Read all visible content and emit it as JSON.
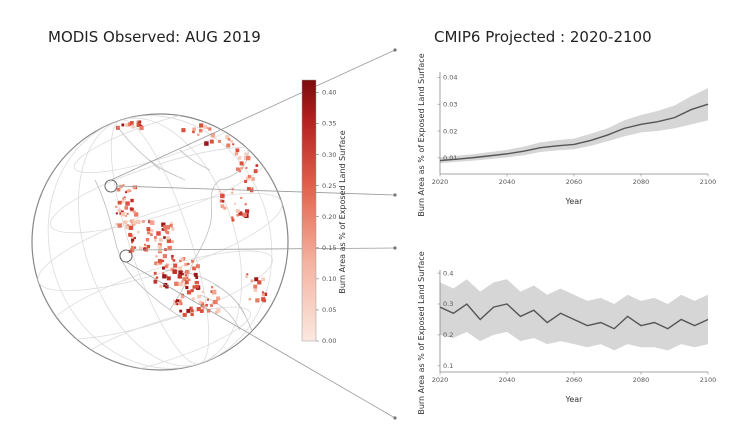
{
  "titles": {
    "map": "MODIS Observed: AUG 2019",
    "projection": "CMIP6 Projected : 2020-2100"
  },
  "colorbar": {
    "label": "Burn Area as % of Exposed Land Surface",
    "ticks": [
      "0.00",
      "0.05",
      "0.10",
      "0.15",
      "0.20",
      "0.25",
      "0.30",
      "0.35",
      "0.40"
    ],
    "min": 0,
    "max": 0.42,
    "color_low": "#fbe8e0",
    "color_high": "#7a0c0c"
  },
  "chart_data": [
    {
      "type": "line",
      "xlabel": "Year",
      "ylabel": "Burn Area as % of Exposed Land Surface",
      "xlim": [
        2020,
        2100
      ],
      "ylim": [
        0.004,
        0.042
      ],
      "x_ticks": [
        2020,
        2040,
        2060,
        2080,
        2100
      ],
      "y_ticks": [
        0.01,
        0.02,
        0.03,
        0.04
      ],
      "y_tick_labels": [
        "0.01",
        "0.02",
        "0.03",
        "0.04"
      ],
      "x": [
        2020,
        2025,
        2030,
        2035,
        2040,
        2045,
        2050,
        2055,
        2060,
        2065,
        2070,
        2075,
        2080,
        2085,
        2090,
        2095,
        2100
      ],
      "mean": [
        0.009,
        0.0095,
        0.0101,
        0.0108,
        0.0115,
        0.0125,
        0.0138,
        0.0145,
        0.015,
        0.0165,
        0.0185,
        0.021,
        0.0225,
        0.0235,
        0.025,
        0.028,
        0.03
      ],
      "lower": [
        0.008,
        0.0085,
        0.009,
        0.0096,
        0.0102,
        0.011,
        0.0122,
        0.0128,
        0.0132,
        0.0145,
        0.0162,
        0.018,
        0.0195,
        0.02,
        0.021,
        0.0225,
        0.024
      ],
      "upper": [
        0.0102,
        0.0108,
        0.0114,
        0.0122,
        0.013,
        0.0142,
        0.0158,
        0.0166,
        0.0172,
        0.019,
        0.021,
        0.024,
        0.026,
        0.0275,
        0.0295,
        0.033,
        0.036
      ],
      "line_color": "#555555",
      "band_color": "#d6d6d6"
    },
    {
      "type": "line",
      "xlabel": "Year",
      "ylabel": "Burn Area as % of Exposed Land Surface",
      "xlim": [
        2020,
        2100
      ],
      "ylim": [
        0.08,
        0.41
      ],
      "x_ticks": [
        2020,
        2040,
        2060,
        2080,
        2100
      ],
      "y_ticks": [
        0.1,
        0.2,
        0.3,
        0.4
      ],
      "y_tick_labels": [
        "0.1",
        "0.2",
        "0.3",
        "0.4"
      ],
      "x": [
        2020,
        2024,
        2028,
        2032,
        2036,
        2040,
        2044,
        2048,
        2052,
        2056,
        2060,
        2064,
        2068,
        2072,
        2076,
        2080,
        2084,
        2088,
        2092,
        2096,
        2100
      ],
      "mean": [
        0.29,
        0.27,
        0.3,
        0.25,
        0.29,
        0.3,
        0.26,
        0.28,
        0.24,
        0.27,
        0.25,
        0.23,
        0.24,
        0.22,
        0.26,
        0.23,
        0.24,
        0.22,
        0.25,
        0.23,
        0.25
      ],
      "lower": [
        0.2,
        0.19,
        0.21,
        0.18,
        0.2,
        0.21,
        0.18,
        0.19,
        0.17,
        0.18,
        0.17,
        0.16,
        0.17,
        0.15,
        0.17,
        0.16,
        0.16,
        0.15,
        0.17,
        0.16,
        0.17
      ],
      "upper": [
        0.37,
        0.35,
        0.38,
        0.34,
        0.37,
        0.38,
        0.34,
        0.36,
        0.33,
        0.35,
        0.33,
        0.31,
        0.32,
        0.3,
        0.33,
        0.31,
        0.32,
        0.3,
        0.33,
        0.31,
        0.33
      ],
      "line_color": "#555555",
      "band_color": "#d6d6d6"
    }
  ]
}
